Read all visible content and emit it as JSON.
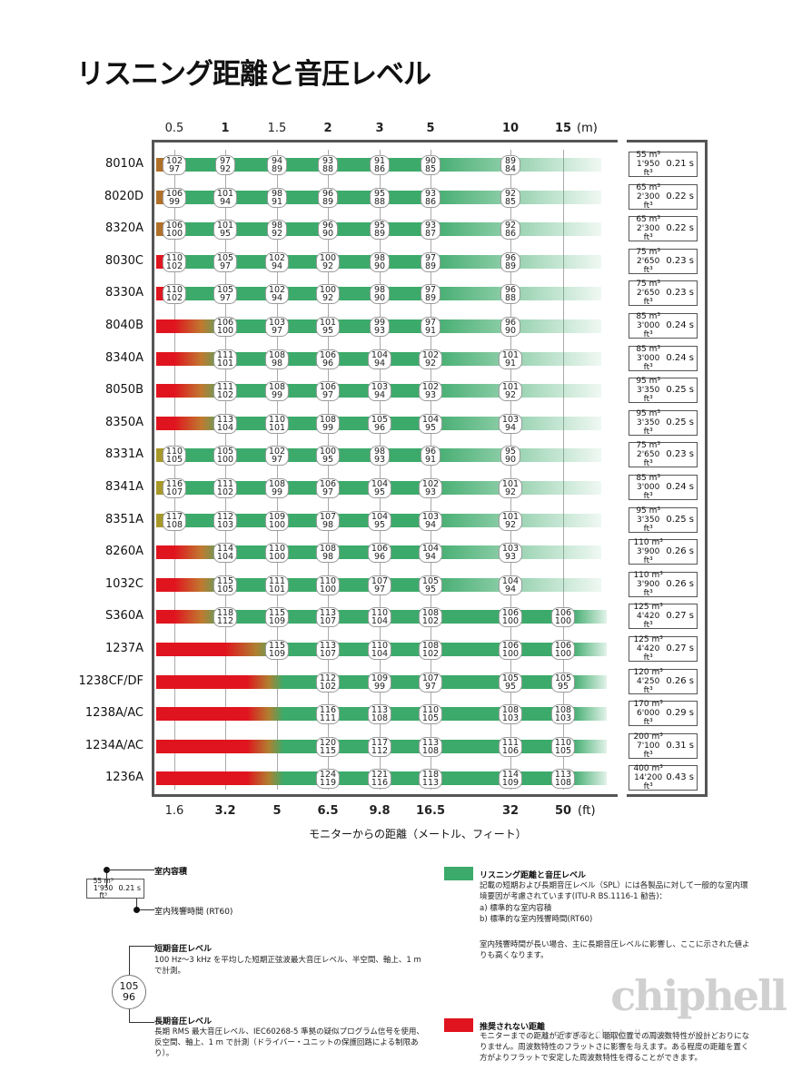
{
  "title": "リスニング距離と音圧レベル",
  "axis_top": {
    "ticks": [
      "0.5",
      "1",
      "1.5",
      "2",
      "3",
      "5",
      "10",
      "15"
    ],
    "unit": "(m)"
  },
  "axis_bottom": {
    "ticks": [
      "1.6",
      "3.2",
      "5",
      "6.5",
      "9.8",
      "16.5",
      "32",
      "50"
    ],
    "unit": "(ft)"
  },
  "x_caption": "モニターからの距離（メートル、フィート）",
  "colors": {
    "green": "#3caa6a",
    "red": "#e0141e",
    "brown": "#b07028",
    "olive": "#a89828",
    "frame": "#555555"
  },
  "rows": [
    {
      "model": "8010A",
      "start": "brown",
      "vals": [
        [
          "102",
          "97"
        ],
        [
          "97",
          "92"
        ],
        [
          "94",
          "89"
        ],
        [
          "93",
          "88"
        ],
        [
          "91",
          "86"
        ],
        [
          "90",
          "85"
        ],
        [
          "89",
          "84"
        ]
      ],
      "vol": "55 m³",
      "vol_ft": "1'950 ft³",
      "rt": "0.21 s"
    },
    {
      "model": "8020D",
      "start": "brown",
      "vals": [
        [
          "106",
          "99"
        ],
        [
          "101",
          "94"
        ],
        [
          "98",
          "91"
        ],
        [
          "96",
          "89"
        ],
        [
          "95",
          "88"
        ],
        [
          "93",
          "86"
        ],
        [
          "92",
          "85"
        ]
      ],
      "vol": "65 m³",
      "vol_ft": "2'300 ft³",
      "rt": "0.22 s"
    },
    {
      "model": "8320A",
      "start": "brown",
      "vals": [
        [
          "106",
          "100"
        ],
        [
          "101",
          "95"
        ],
        [
          "98",
          "92"
        ],
        [
          "96",
          "90"
        ],
        [
          "95",
          "89"
        ],
        [
          "93",
          "87"
        ],
        [
          "92",
          "86"
        ]
      ],
      "vol": "65 m³",
      "vol_ft": "2'300 ft³",
      "rt": "0.22 s"
    },
    {
      "model": "8030C",
      "start": "red",
      "vals": [
        [
          "110",
          "102"
        ],
        [
          "105",
          "97"
        ],
        [
          "102",
          "94"
        ],
        [
          "100",
          "92"
        ],
        [
          "98",
          "90"
        ],
        [
          "97",
          "89"
        ],
        [
          "96",
          "89"
        ]
      ],
      "vol": "75 m³",
      "vol_ft": "2'650 ft³",
      "rt": "0.23 s"
    },
    {
      "model": "8330A",
      "start": "red",
      "vals": [
        [
          "110",
          "102"
        ],
        [
          "105",
          "97"
        ],
        [
          "102",
          "94"
        ],
        [
          "100",
          "92"
        ],
        [
          "98",
          "90"
        ],
        [
          "97",
          "89"
        ],
        [
          "96",
          "88"
        ]
      ],
      "vol": "75 m³",
      "vol_ft": "2'650 ft³",
      "rt": "0.23 s"
    },
    {
      "model": "8040B",
      "start": "redlong",
      "vals": [
        null,
        [
          "106",
          "100"
        ],
        [
          "103",
          "97"
        ],
        [
          "101",
          "95"
        ],
        [
          "99",
          "93"
        ],
        [
          "97",
          "91"
        ],
        [
          "96",
          "90"
        ]
      ],
      "vol": "85 m³",
      "vol_ft": "3'000 ft³",
      "rt": "0.24 s"
    },
    {
      "model": "8340A",
      "start": "redlong",
      "vals": [
        null,
        [
          "111",
          "101"
        ],
        [
          "108",
          "98"
        ],
        [
          "106",
          "96"
        ],
        [
          "104",
          "94"
        ],
        [
          "102",
          "92"
        ],
        [
          "101",
          "91"
        ]
      ],
      "vol": "85 m³",
      "vol_ft": "3'000 ft³",
      "rt": "0.24 s"
    },
    {
      "model": "8050B",
      "start": "redlong",
      "vals": [
        null,
        [
          "111",
          "102"
        ],
        [
          "108",
          "99"
        ],
        [
          "106",
          "97"
        ],
        [
          "103",
          "94"
        ],
        [
          "102",
          "93"
        ],
        [
          "101",
          "92"
        ]
      ],
      "vol": "95 m³",
      "vol_ft": "3'350 ft³",
      "rt": "0.25 s"
    },
    {
      "model": "8350A",
      "start": "redlong",
      "vals": [
        null,
        [
          "113",
          "104"
        ],
        [
          "110",
          "101"
        ],
        [
          "108",
          "99"
        ],
        [
          "105",
          "96"
        ],
        [
          "104",
          "95"
        ],
        [
          "103",
          "94"
        ]
      ],
      "vol": "95 m³",
      "vol_ft": "3'350 ft³",
      "rt": "0.25 s"
    },
    {
      "model": "8331A",
      "start": "olive",
      "vals": [
        [
          "110",
          "105"
        ],
        [
          "105",
          "100"
        ],
        [
          "102",
          "97"
        ],
        [
          "100",
          "95"
        ],
        [
          "98",
          "93"
        ],
        [
          "96",
          "91"
        ],
        [
          "95",
          "90"
        ]
      ],
      "vol": "75 m³",
      "vol_ft": "2'650 ft³",
      "rt": "0.23 s"
    },
    {
      "model": "8341A",
      "start": "olive",
      "vals": [
        [
          "116",
          "107"
        ],
        [
          "111",
          "102"
        ],
        [
          "108",
          "99"
        ],
        [
          "106",
          "97"
        ],
        [
          "104",
          "95"
        ],
        [
          "102",
          "93"
        ],
        [
          "101",
          "92"
        ]
      ],
      "vol": "85 m³",
      "vol_ft": "3'000 ft³",
      "rt": "0.24 s"
    },
    {
      "model": "8351A",
      "start": "olive",
      "vals": [
        [
          "117",
          "108"
        ],
        [
          "112",
          "103"
        ],
        [
          "109",
          "100"
        ],
        [
          "107",
          "98"
        ],
        [
          "104",
          "95"
        ],
        [
          "103",
          "94"
        ],
        [
          "101",
          "92"
        ]
      ],
      "vol": "95 m³",
      "vol_ft": "3'350 ft³",
      "rt": "0.25 s"
    },
    {
      "model": "8260A",
      "start": "redlong",
      "vals": [
        null,
        [
          "114",
          "104"
        ],
        [
          "110",
          "100"
        ],
        [
          "108",
          "98"
        ],
        [
          "106",
          "96"
        ],
        [
          "104",
          "94"
        ],
        [
          "103",
          "93"
        ]
      ],
      "vol": "110 m³",
      "vol_ft": "3'900 ft³",
      "rt": "0.26 s"
    },
    {
      "model": "1032C",
      "start": "redlong",
      "vals": [
        null,
        [
          "115",
          "105"
        ],
        [
          "111",
          "101"
        ],
        [
          "110",
          "100"
        ],
        [
          "107",
          "97"
        ],
        [
          "105",
          "95"
        ],
        [
          "104",
          "94"
        ]
      ],
      "vol": "110 m³",
      "vol_ft": "3'900 ft³",
      "rt": "0.26 s"
    },
    {
      "model": "S360A",
      "start": "redlong",
      "vals": [
        null,
        [
          "118",
          "112"
        ],
        [
          "115",
          "109"
        ],
        [
          "113",
          "107"
        ],
        [
          "110",
          "104"
        ],
        [
          "108",
          "102"
        ],
        [
          "106",
          "100"
        ],
        [
          "106",
          "100"
        ]
      ],
      "vol": "125 m³",
      "vol_ft": "4'420 ft³",
      "rt": "0.27 s"
    },
    {
      "model": "1237A",
      "start": "red1",
      "vals": [
        null,
        null,
        [
          "115",
          "109"
        ],
        [
          "113",
          "107"
        ],
        [
          "110",
          "104"
        ],
        [
          "108",
          "102"
        ],
        [
          "106",
          "100"
        ],
        [
          "106",
          "100"
        ]
      ],
      "vol": "125 m³",
      "vol_ft": "4'420 ft³",
      "rt": "0.27 s"
    },
    {
      "model": "1238CF/DF",
      "start": "red2",
      "vals": [
        null,
        null,
        null,
        [
          "112",
          "102"
        ],
        [
          "109",
          "99"
        ],
        [
          "107",
          "97"
        ],
        [
          "105",
          "95"
        ],
        [
          "105",
          "95"
        ]
      ],
      "vol": "120 m³",
      "vol_ft": "4'250 ft³",
      "rt": "0.26 s"
    },
    {
      "model": "1238A/AC",
      "start": "red2",
      "vals": [
        null,
        null,
        null,
        [
          "116",
          "111"
        ],
        [
          "113",
          "108"
        ],
        [
          "110",
          "105"
        ],
        [
          "108",
          "103"
        ],
        [
          "108",
          "103"
        ]
      ],
      "vol": "170 m³",
      "vol_ft": "6'000 ft³",
      "rt": "0.29 s"
    },
    {
      "model": "1234A/AC",
      "start": "red2",
      "vals": [
        null,
        null,
        null,
        [
          "120",
          "115"
        ],
        [
          "117",
          "112"
        ],
        [
          "113",
          "108"
        ],
        [
          "111",
          "106"
        ],
        [
          "110",
          "105"
        ]
      ],
      "vol": "200 m³",
      "vol_ft": "7'100 ft³",
      "rt": "0.31 s"
    },
    {
      "model": "1236A",
      "start": "red2",
      "vals": [
        null,
        null,
        null,
        [
          "124",
          "119"
        ],
        [
          "121",
          "116"
        ],
        [
          "118",
          "113"
        ],
        [
          "114",
          "109"
        ],
        [
          "113",
          "108"
        ]
      ],
      "vol": "400 m³",
      "vol_ft": "14'200 ft³",
      "rt": "0.43 s"
    }
  ],
  "legend": {
    "ex_vol": "55 m³",
    "ex_vol_ft": "1'950 ft³",
    "ex_rt": "0.21 s",
    "room_volume": "室内容積",
    "reverb": "室内残響時間 (RT60)",
    "short_title": "短期音圧レベル",
    "short_desc": "100 Hz～3 kHz を平均した短期正弦波最大音圧レベル、半空間、軸上、1 m で計測。",
    "ex_short": "105",
    "ex_long": "96",
    "long_title": "長期音圧レベル",
    "long_desc": "長期 RMS 最大音圧レベル、IEC60268-5 準拠の疑似プログラム信号を使用、反空間、軸上、1 m で計測（ドライバー・ユニットの保護回路による制限あり）。",
    "green_title": "リスニング距離と音圧レベル",
    "green_desc1": "記載の短期および長期音圧レベル（SPL）には各製品に対して一般的な室内環境要因が考慮されています(ITU-R BS.1116-1 勧告)：",
    "green_a": "a) 標準的な室内容積",
    "green_b": "b) 標準的な室内残響時間(RT60)",
    "green_desc2": "室内残響時間が長い場合、主に長期音圧レベルに影響し、ここに示された値よりも高くなります。",
    "red_title": "推奨されない距離",
    "red_desc": "モニターまでの距離が近すぎると、聴取位置での周波数特性が設計どおりになりません。周波数特性のフラットさに影響を与えます。ある程度の距離を置く方がよりフラットで安定した周波数特性を得ることができます。"
  },
  "watermark": "chiphell",
  "watermark_url": "www.chiphell.com"
}
